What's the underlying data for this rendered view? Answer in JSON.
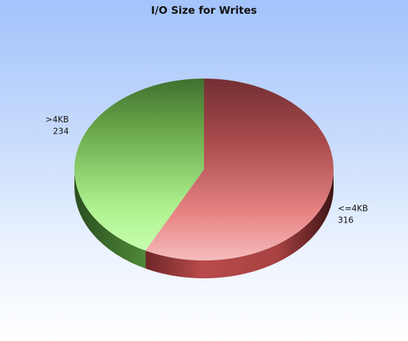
{
  "chart_data": {
    "type": "pie",
    "title": "I/O Size for Writes",
    "slices": [
      {
        "label": "<=4KB",
        "value": 316,
        "color": "#b84848"
      },
      {
        "label": ">4KB",
        "value": 234,
        "color": "#6fb04a"
      }
    ],
    "three_d": true,
    "legend": "none"
  }
}
